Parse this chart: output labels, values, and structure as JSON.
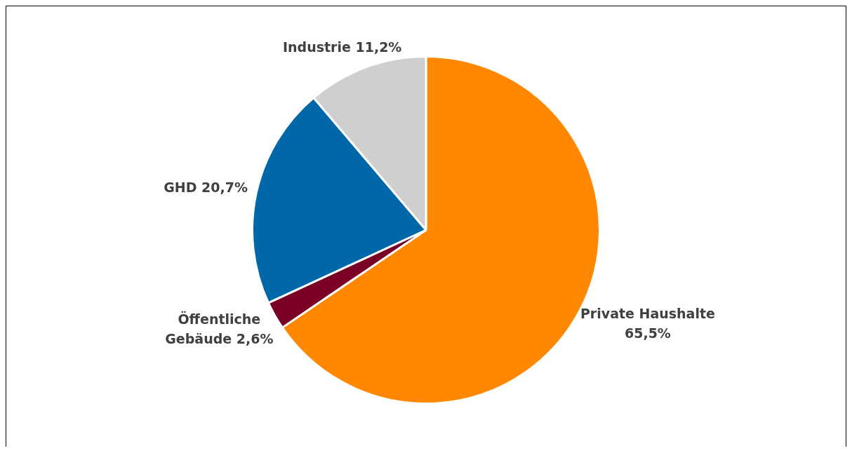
{
  "chart_data": {
    "type": "pie",
    "categories": [
      "Private Haushalte",
      "Öffentliche Gebäude",
      "GHD",
      "Industrie"
    ],
    "values": [
      65.5,
      2.6,
      20.7,
      11.2
    ],
    "colors": [
      "#ff8800",
      "#7a0026",
      "#0068a8",
      "#d0cfd0"
    ],
    "value_labels": [
      "65,5%",
      "2,6%",
      "20,7%",
      "11,2%"
    ],
    "legend": false
  }
}
